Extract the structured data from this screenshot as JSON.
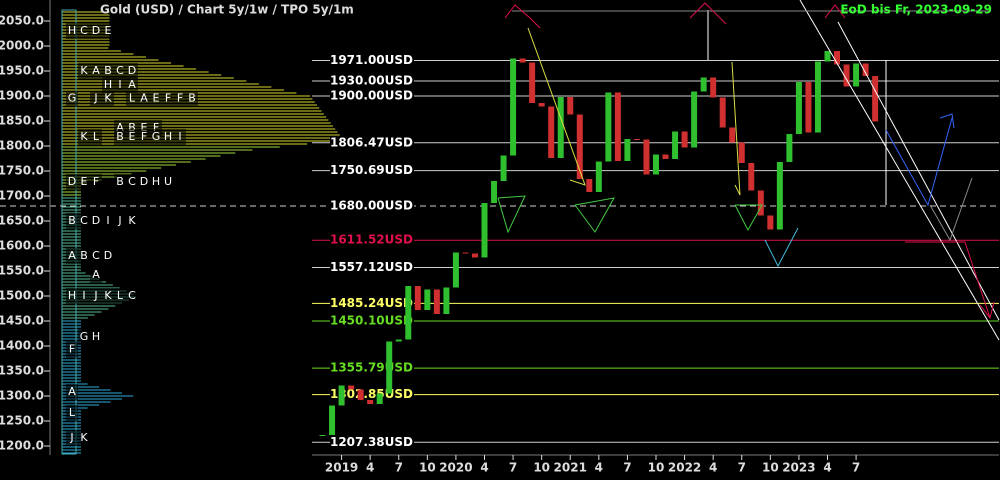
{
  "chart_data": {
    "type": "candlestick",
    "title": "Gold (USD) /  Chart 5y/1w / TPO 5y/1m",
    "subtitle": "EoD bis Fr, 2023-09-29",
    "ylim": [
      1185,
      2070
    ],
    "yticks": [
      {
        "value": 2050,
        "label": "2050.0"
      },
      {
        "value": 2000,
        "label": "2000.0"
      },
      {
        "value": 1950,
        "label": "1950.0"
      },
      {
        "value": 1900,
        "label": "1900.0"
      },
      {
        "value": 1850,
        "label": "1850.0"
      },
      {
        "value": 1800,
        "label": "1800.0"
      },
      {
        "value": 1750,
        "label": "1750.0"
      },
      {
        "value": 1700,
        "label": "1700.0"
      },
      {
        "value": 1650,
        "label": "1650.0"
      },
      {
        "value": 1600,
        "label": "1600.0"
      },
      {
        "value": 1550,
        "label": "1550.0"
      },
      {
        "value": 1500,
        "label": "1500.0"
      },
      {
        "value": 1450,
        "label": "1450.0"
      },
      {
        "value": 1400,
        "label": "1400.0"
      },
      {
        "value": 1350,
        "label": "1350.0"
      },
      {
        "value": 1300,
        "label": "1300.0"
      },
      {
        "value": 1250,
        "label": "1250.0"
      },
      {
        "value": 1200,
        "label": "1200.0"
      }
    ],
    "xlim": [
      -1,
      71
    ],
    "xticks": [
      {
        "value": 2,
        "label": "2019"
      },
      {
        "value": 5,
        "label": "4"
      },
      {
        "value": 8,
        "label": "7"
      },
      {
        "value": 11,
        "label": "10"
      },
      {
        "value": 14,
        "label": "2020"
      },
      {
        "value": 17,
        "label": "4"
      },
      {
        "value": 20,
        "label": "7"
      },
      {
        "value": 23,
        "label": "10"
      },
      {
        "value": 26,
        "label": "2021"
      },
      {
        "value": 29,
        "label": "4"
      },
      {
        "value": 32,
        "label": "7"
      },
      {
        "value": 35,
        "label": "10"
      },
      {
        "value": 38,
        "label": "2022"
      },
      {
        "value": 41,
        "label": "4"
      },
      {
        "value": 44,
        "label": "7"
      },
      {
        "value": 47,
        "label": "10"
      },
      {
        "value": 50,
        "label": "2023"
      },
      {
        "value": 53,
        "label": "4"
      },
      {
        "value": 56,
        "label": "7"
      }
    ],
    "x": [
      0,
      1,
      2,
      3,
      4,
      5,
      6,
      7,
      8,
      9,
      10,
      11,
      12,
      13,
      14,
      15,
      16,
      17,
      18,
      19,
      20,
      21,
      22,
      23,
      24,
      25,
      26,
      27,
      28,
      29,
      30,
      31,
      32,
      33,
      34,
      35,
      36,
      37,
      38,
      39,
      40,
      41,
      42,
      43,
      44,
      45,
      46,
      47,
      48,
      49,
      50,
      51,
      52,
      53,
      54,
      55,
      56,
      57,
      58
    ],
    "series": [
      {
        "name": "Gold",
        "up_color": "#2fbf2f",
        "down_color": "#d03030",
        "values": [
          1222,
          1281,
          1321,
          1313,
          1292,
          1284,
          1305,
          1409,
          1413,
          1520,
          1472,
          1513,
          1464,
          1517,
          1587,
          1585,
          1577,
          1686,
          1730,
          1781,
          1975,
          1967,
          1886,
          1879,
          1776,
          1898,
          1863,
          1734,
          1708,
          1769,
          1907,
          1770,
          1814,
          1813,
          1743,
          1783,
          1774,
          1829,
          1797,
          1909,
          1937,
          1897,
          1837,
          1807,
          1766,
          1711,
          1661,
          1633,
          1768,
          1824,
          1928,
          1827,
          1969,
          1990,
          1963,
          1919,
          1965,
          1940,
          1849
        ]
      }
    ],
    "levels": {
      "values": [
        1971.0,
        1930.0,
        1900.0,
        1806.47,
        1750.69,
        1680.0,
        1611.52,
        1557.12,
        1485.24,
        1450.1,
        1355.79,
        1302.85,
        1207.38
      ],
      "value_labels": [
        "1971.00USD",
        "1930.00USD",
        "1900.00USD",
        "1806.47USD",
        "1750.69USD",
        "1680.00USD",
        "1611.52USD",
        "1557.12USD",
        "1485.24USD",
        "1450.10USD",
        "1355.79USD",
        "1302.85USD",
        "1207.38USD"
      ],
      "colors": [
        "#ffffff",
        "#ffffff",
        "#ffffff",
        "#ffffff",
        "#ffffff",
        "#ffffff",
        "#e0104c",
        "#ffffff",
        "#ffff66",
        "#66dd22",
        "#66dd22",
        "#ffff66",
        "#ffffff"
      ]
    },
    "tpo": [
      {
        "price": 2030,
        "letters": [
          "H",
          "C",
          "D",
          "E"
        ]
      },
      {
        "price": 1950,
        "letters": [
          "K",
          "A",
          "B",
          "C",
          "D"
        ]
      },
      {
        "price": 1922,
        "letters": [
          "H",
          "I"
        ]
      },
      {
        "price": 1922,
        "letters": [
          "A"
        ]
      },
      {
        "price": 1895,
        "letters": [
          "G"
        ]
      },
      {
        "price": 1895,
        "letters": [
          "J",
          "K"
        ]
      },
      {
        "price": 1895,
        "letters": [
          "L",
          "A",
          "E",
          "F",
          "F",
          "B"
        ]
      },
      {
        "price": 1836,
        "letters": [
          "A",
          "B",
          "E",
          "F"
        ]
      },
      {
        "price": 1818,
        "letters": [
          "K",
          "L"
        ]
      },
      {
        "price": 1818,
        "letters": [
          "B",
          "E",
          "F",
          "G",
          "H",
          "I"
        ]
      },
      {
        "price": 1728,
        "letters": [
          "D",
          "E",
          "F"
        ]
      },
      {
        "price": 1728,
        "letters": [
          "B",
          "C",
          "D",
          "H",
          "U"
        ]
      },
      {
        "price": 1650,
        "letters": [
          "B",
          "C",
          "D"
        ]
      },
      {
        "price": 1650,
        "letters": [
          "I",
          "J",
          "K"
        ]
      },
      {
        "price": 1580,
        "letters": [
          "A",
          "B",
          "C",
          "D"
        ]
      },
      {
        "price": 1542,
        "letters": [
          "A"
        ]
      },
      {
        "price": 1500,
        "letters": [
          "H",
          "I"
        ]
      },
      {
        "price": 1500,
        "letters": [
          "J",
          "K",
          "L",
          "C"
        ]
      },
      {
        "price": 1418,
        "letters": [
          "G",
          "H"
        ]
      },
      {
        "price": 1393,
        "letters": [
          "F"
        ]
      },
      {
        "price": 1308,
        "letters": [
          "A"
        ]
      },
      {
        "price": 1266,
        "letters": [
          "L"
        ]
      },
      {
        "price": 1216,
        "letters": [
          "J",
          "K"
        ]
      }
    ]
  }
}
